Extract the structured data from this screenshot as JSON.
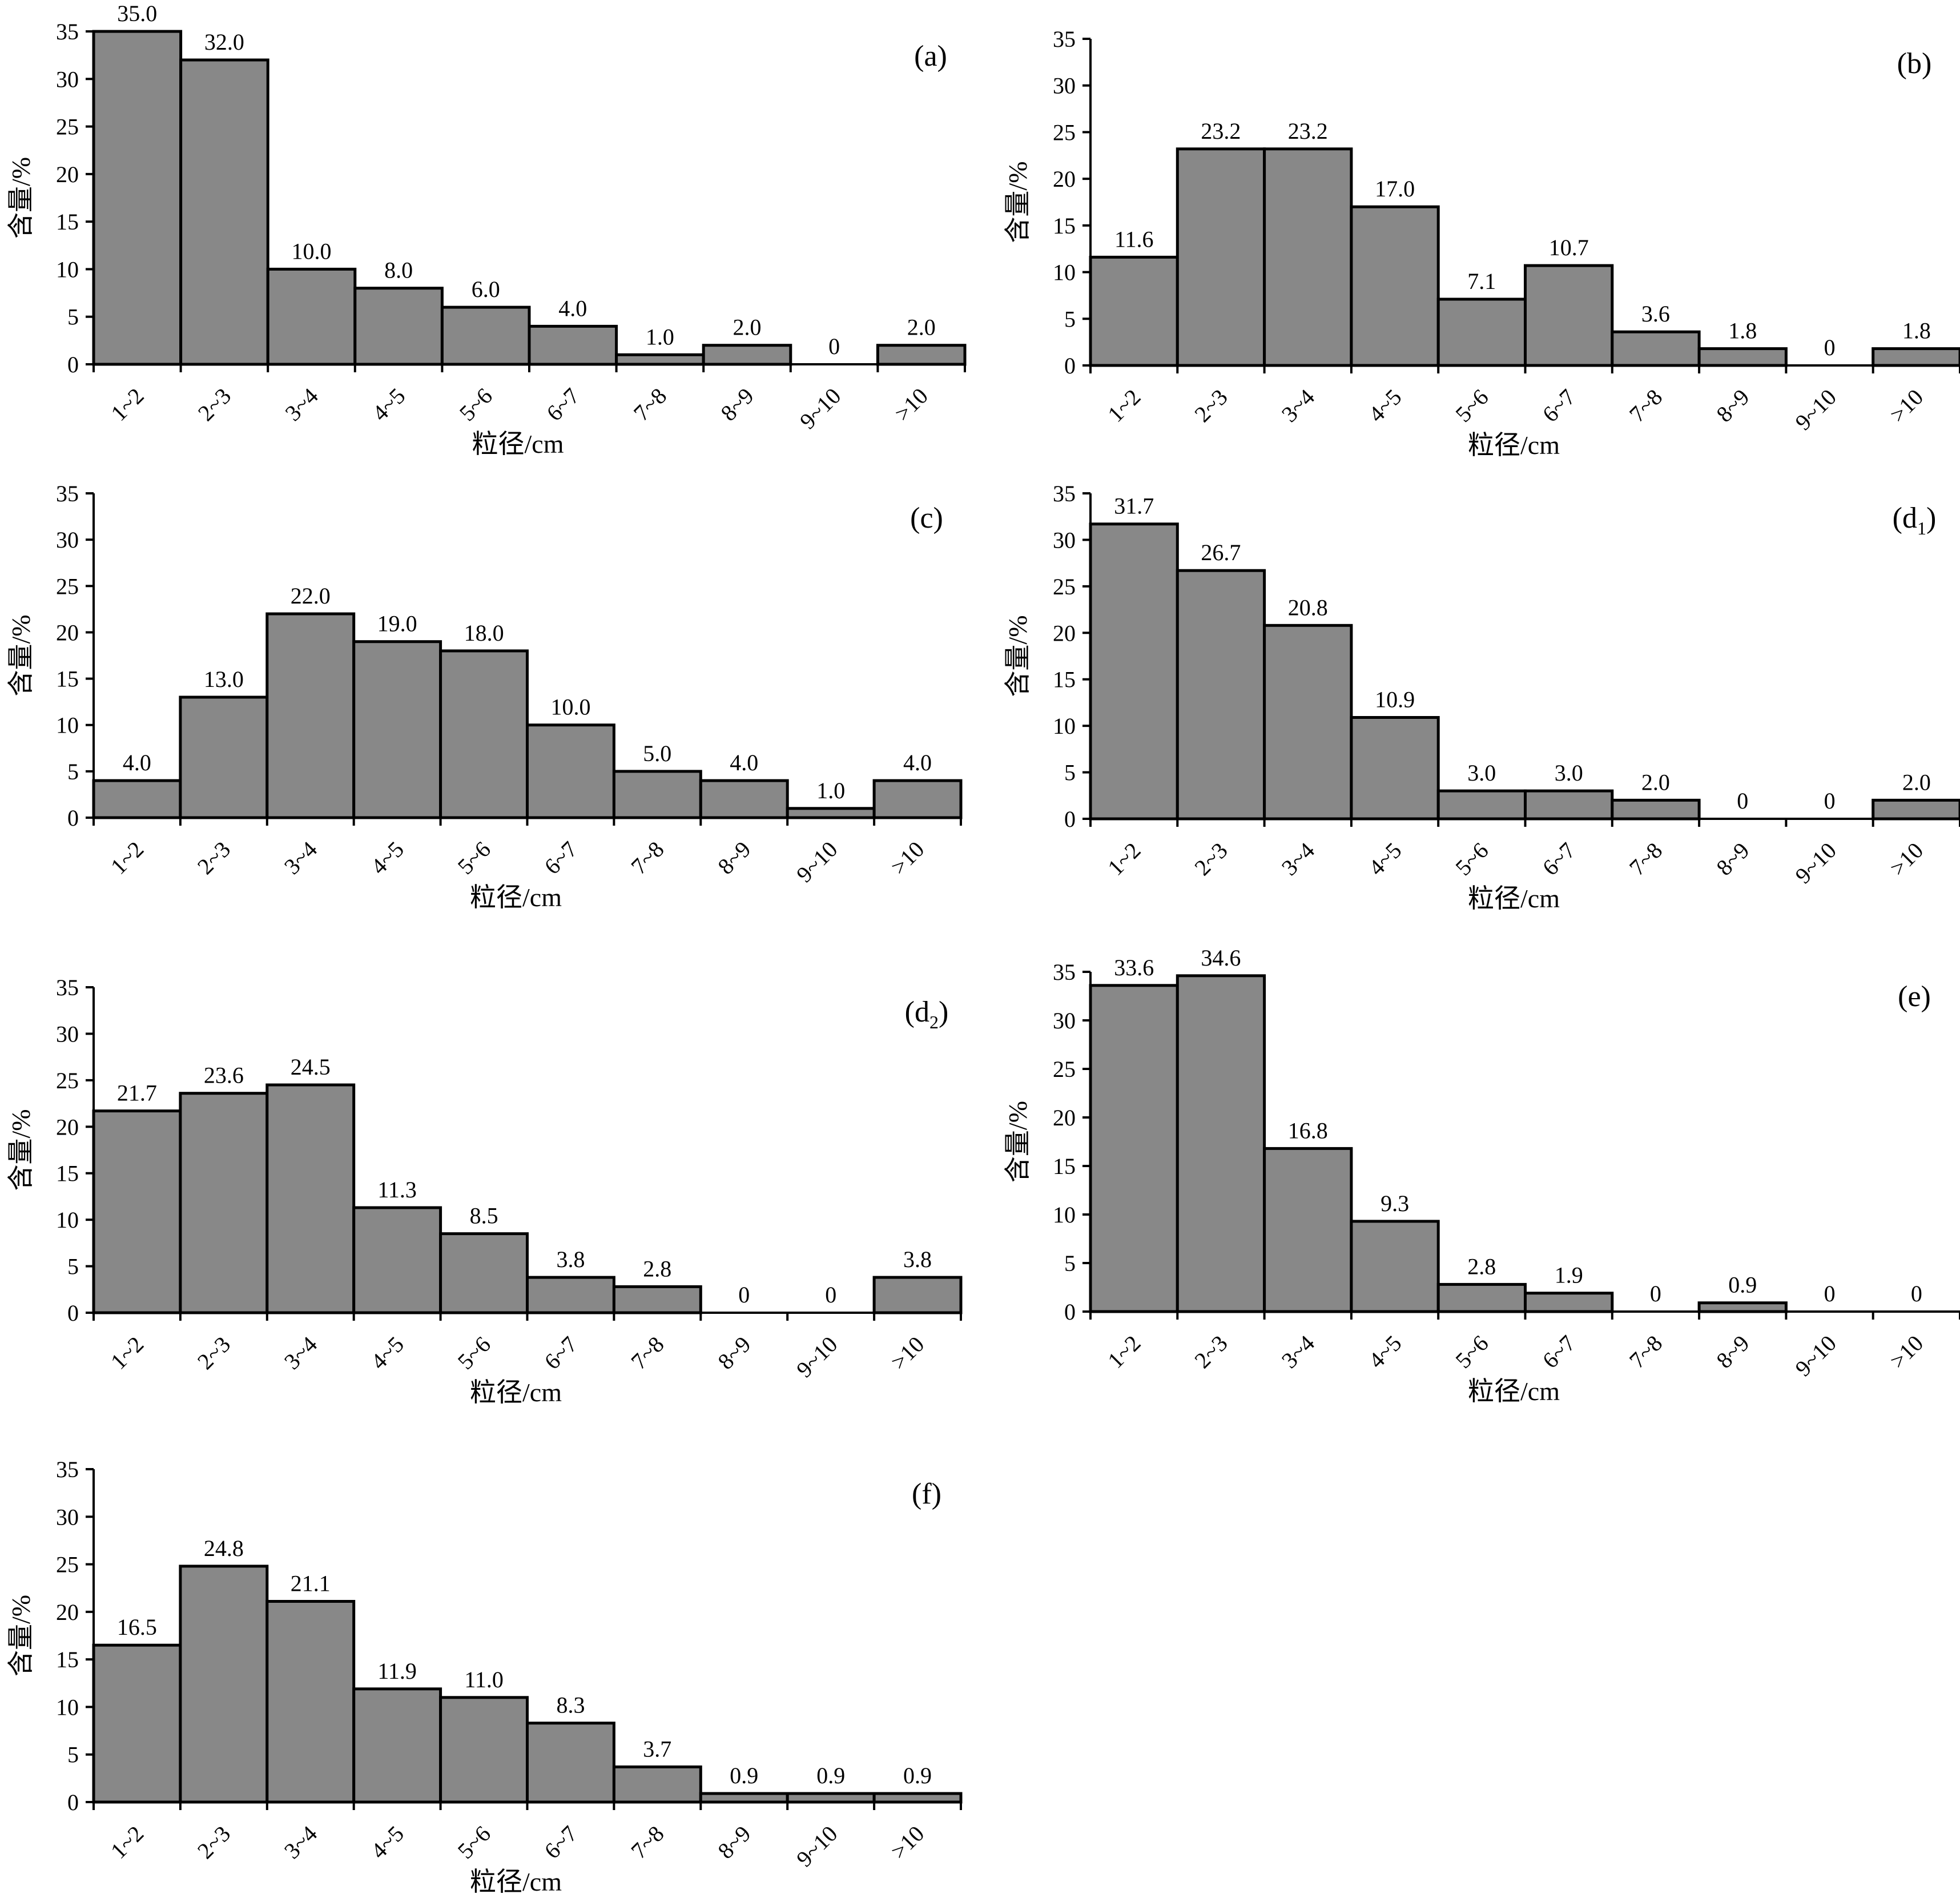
{
  "chart_data": [
    {
      "type": "bar",
      "panel_label": "(a)",
      "categories": [
        "1~2",
        "2~3",
        "3~4",
        "4~5",
        "5~6",
        "6~7",
        "7~8",
        "8~9",
        "9~10",
        ">10"
      ],
      "values": [
        35.0,
        32.0,
        10.0,
        8.0,
        6.0,
        4.0,
        1.0,
        2.0,
        0,
        2.0
      ],
      "value_labels": [
        "35.0",
        "32.0",
        "10.0",
        "8.0",
        "6.0",
        "4.0",
        "1.0",
        "2.0",
        "0",
        "2.0"
      ],
      "xlabel": "粒径/cm",
      "ylabel": "含量/%",
      "ylim": [
        0,
        35
      ],
      "yticks": [
        "0",
        "5",
        "10",
        "15",
        "20",
        "25",
        "30",
        "35"
      ]
    },
    {
      "type": "bar",
      "panel_label": "(b)",
      "categories": [
        "1~2",
        "2~3",
        "3~4",
        "4~5",
        "5~6",
        "6~7",
        "7~8",
        "8~9",
        "9~10",
        ">10"
      ],
      "values": [
        11.6,
        23.2,
        23.2,
        17.0,
        7.1,
        10.7,
        3.6,
        1.8,
        0,
        1.8
      ],
      "value_labels": [
        "11.6",
        "23.2",
        "23.2",
        "17.0",
        "7.1",
        "10.7",
        "3.6",
        "1.8",
        "0",
        "1.8"
      ],
      "xlabel": "粒径/cm",
      "ylabel": "含量/%",
      "ylim": [
        0,
        35
      ],
      "yticks": [
        "0",
        "5",
        "10",
        "15",
        "20",
        "25",
        "30",
        "35"
      ]
    },
    {
      "type": "bar",
      "panel_label": "(c)",
      "categories": [
        "1~2",
        "2~3",
        "3~4",
        "4~5",
        "5~6",
        "6~7",
        "7~8",
        "8~9",
        "9~10",
        ">10"
      ],
      "values": [
        4.0,
        13.0,
        22.0,
        19.0,
        18.0,
        10.0,
        5.0,
        4.0,
        1.0,
        4.0
      ],
      "value_labels": [
        "4.0",
        "13.0",
        "22.0",
        "19.0",
        "18.0",
        "10.0",
        "5.0",
        "4.0",
        "1.0",
        "4.0"
      ],
      "xlabel": "粒径/cm",
      "ylabel": "含量/%",
      "ylim": [
        0,
        35
      ],
      "yticks": [
        "0",
        "5",
        "10",
        "15",
        "20",
        "25",
        "30",
        "35"
      ]
    },
    {
      "type": "bar",
      "panel_label": "(d",
      "panel_label_sub": "1",
      "panel_label_close": ")",
      "categories": [
        "1~2",
        "2~3",
        "3~4",
        "4~5",
        "5~6",
        "6~7",
        "7~8",
        "8~9",
        "9~10",
        ">10"
      ],
      "values": [
        31.7,
        26.7,
        20.8,
        10.9,
        3.0,
        3.0,
        2.0,
        0,
        0,
        2.0
      ],
      "value_labels": [
        "31.7",
        "26.7",
        "20.8",
        "10.9",
        "3.0",
        "3.0",
        "2.0",
        "0",
        "0",
        "2.0"
      ],
      "xlabel": "粒径/cm",
      "ylabel": "含量/%",
      "ylim": [
        0,
        35
      ],
      "yticks": [
        "0",
        "5",
        "10",
        "15",
        "20",
        "25",
        "30",
        "35"
      ]
    },
    {
      "type": "bar",
      "panel_label": "(d",
      "panel_label_sub": "2",
      "panel_label_close": ")",
      "categories": [
        "1~2",
        "2~3",
        "3~4",
        "4~5",
        "5~6",
        "6~7",
        "7~8",
        "8~9",
        "9~10",
        ">10"
      ],
      "values": [
        21.7,
        23.6,
        24.5,
        11.3,
        8.5,
        3.8,
        2.8,
        0,
        0,
        3.8
      ],
      "value_labels": [
        "21.7",
        "23.6",
        "24.5",
        "11.3",
        "8.5",
        "3.8",
        "2.8",
        "0",
        "0",
        "3.8"
      ],
      "xlabel": "粒径/cm",
      "ylabel": "含量/%",
      "ylim": [
        0,
        35
      ],
      "yticks": [
        "0",
        "5",
        "10",
        "15",
        "20",
        "25",
        "30",
        "35"
      ]
    },
    {
      "type": "bar",
      "panel_label": "(e)",
      "categories": [
        "1~2",
        "2~3",
        "3~4",
        "4~5",
        "5~6",
        "6~7",
        "7~8",
        "8~9",
        "9~10",
        ">10"
      ],
      "values": [
        33.6,
        34.6,
        16.8,
        9.3,
        2.8,
        1.9,
        0,
        0.9,
        0,
        0
      ],
      "value_labels": [
        "33.6",
        "34.6",
        "16.8",
        "9.3",
        "2.8",
        "1.9",
        "0",
        "0.9",
        "0",
        "0"
      ],
      "xlabel": "粒径/cm",
      "ylabel": "含量/%",
      "ylim": [
        0,
        35
      ],
      "yticks": [
        "0",
        "5",
        "10",
        "15",
        "20",
        "25",
        "30",
        "35"
      ]
    },
    {
      "type": "bar",
      "panel_label": "(f)",
      "categories": [
        "1~2",
        "2~3",
        "3~4",
        "4~5",
        "5~6",
        "6~7",
        "7~8",
        "8~9",
        "9~10",
        ">10"
      ],
      "values": [
        16.5,
        24.8,
        21.1,
        11.9,
        11.0,
        8.3,
        3.7,
        0.9,
        0.9,
        0.9
      ],
      "value_labels": [
        "16.5",
        "24.8",
        "21.1",
        "11.9",
        "11.0",
        "8.3",
        "3.7",
        "0.9",
        "0.9",
        "0.9"
      ],
      "xlabel": "粒径/cm",
      "ylabel": "含量/%",
      "ylim": [
        0,
        35
      ],
      "yticks": [
        "0",
        "5",
        "10",
        "15",
        "20",
        "25",
        "30",
        "35"
      ]
    }
  ]
}
